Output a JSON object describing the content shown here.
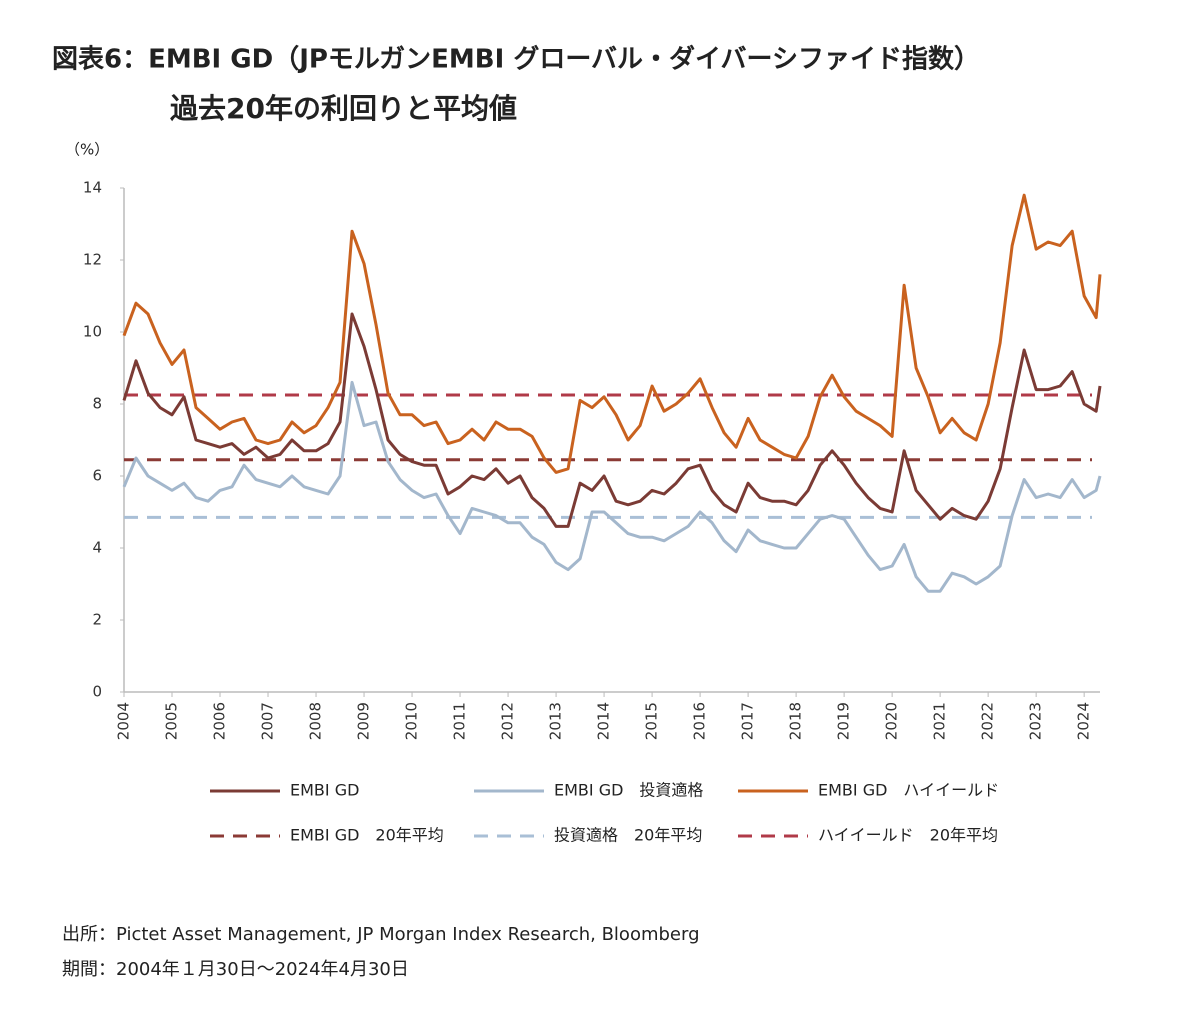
{
  "chart_data": {
    "type": "line",
    "title": "図表6：EMBI GD（JPモルガンEMBI グローバル・ダイバーシファイド指数）",
    "subtitle": "過去20年の利回りと平均値",
    "y_unit": "（%）",
    "x": [
      2004,
      2004.25,
      2004.5,
      2004.75,
      2005,
      2005.25,
      2005.5,
      2005.75,
      2006,
      2006.25,
      2006.5,
      2006.75,
      2007,
      2007.25,
      2007.5,
      2007.75,
      2008,
      2008.25,
      2008.5,
      2008.75,
      2009,
      2009.25,
      2009.5,
      2009.75,
      2010,
      2010.25,
      2010.5,
      2010.75,
      2011,
      2011.25,
      2011.5,
      2011.75,
      2012,
      2012.25,
      2012.5,
      2012.75,
      2013,
      2013.25,
      2013.5,
      2013.75,
      2014,
      2014.25,
      2014.5,
      2014.75,
      2015,
      2015.25,
      2015.5,
      2015.75,
      2016,
      2016.25,
      2016.5,
      2016.75,
      2017,
      2017.25,
      2017.5,
      2017.75,
      2018,
      2018.25,
      2018.5,
      2018.75,
      2019,
      2019.25,
      2019.5,
      2019.75,
      2020,
      2020.25,
      2020.5,
      2020.75,
      2021,
      2021.25,
      2021.5,
      2021.75,
      2022,
      2022.25,
      2022.5,
      2022.75,
      2023,
      2023.25,
      2023.5,
      2023.75,
      2024,
      2024.25,
      2024.33
    ],
    "series": [
      {
        "name": "EMBI GD",
        "color": "#7b3b35",
        "values": [
          8.1,
          9.2,
          8.3,
          7.9,
          7.7,
          8.2,
          7.0,
          6.9,
          6.8,
          6.9,
          6.6,
          6.8,
          6.5,
          6.6,
          7.0,
          6.7,
          6.7,
          6.9,
          7.5,
          10.5,
          9.6,
          8.4,
          7.0,
          6.6,
          6.4,
          6.3,
          6.3,
          5.5,
          5.7,
          6.0,
          5.9,
          6.2,
          5.8,
          6.0,
          5.4,
          5.1,
          4.6,
          4.6,
          5.8,
          5.6,
          6.0,
          5.3,
          5.2,
          5.3,
          5.6,
          5.5,
          5.8,
          6.2,
          6.3,
          5.6,
          5.2,
          5.0,
          5.8,
          5.4,
          5.3,
          5.3,
          5.2,
          5.6,
          6.3,
          6.7,
          6.3,
          5.8,
          5.4,
          5.1,
          5.0,
          6.7,
          5.6,
          5.2,
          4.8,
          5.1,
          4.9,
          4.8,
          5.3,
          6.2,
          7.9,
          9.5,
          8.4,
          8.4,
          8.5,
          8.9,
          8.0,
          7.8,
          8.5
        ]
      },
      {
        "name": "EMBI GD　投資適格",
        "color": "#a3b7cc",
        "values": [
          5.7,
          6.5,
          6.0,
          5.8,
          5.6,
          5.8,
          5.4,
          5.3,
          5.6,
          5.7,
          6.3,
          5.9,
          5.8,
          5.7,
          6.0,
          5.7,
          5.6,
          5.5,
          6.0,
          8.6,
          7.4,
          7.5,
          6.4,
          5.9,
          5.6,
          5.4,
          5.5,
          4.9,
          4.4,
          5.1,
          5.0,
          4.9,
          4.7,
          4.7,
          4.3,
          4.1,
          3.6,
          3.4,
          3.7,
          5.0,
          5.0,
          4.7,
          4.4,
          4.3,
          4.3,
          4.2,
          4.4,
          4.6,
          5.0,
          4.7,
          4.2,
          3.9,
          4.5,
          4.2,
          4.1,
          4.0,
          4.0,
          4.4,
          4.8,
          4.9,
          4.8,
          4.3,
          3.8,
          3.4,
          3.5,
          4.1,
          3.2,
          2.8,
          2.8,
          3.3,
          3.2,
          3.0,
          3.2,
          3.5,
          4.9,
          5.9,
          5.4,
          5.5,
          5.4,
          5.9,
          5.4,
          5.6,
          6.0
        ]
      },
      {
        "name": "EMBI GD　ハイイールド",
        "color": "#c9621f",
        "values": [
          9.9,
          10.8,
          10.5,
          9.7,
          9.1,
          9.5,
          7.9,
          7.6,
          7.3,
          7.5,
          7.6,
          7.0,
          6.9,
          7.0,
          7.5,
          7.2,
          7.4,
          7.9,
          8.6,
          12.8,
          11.9,
          10.2,
          8.3,
          7.7,
          7.7,
          7.4,
          7.5,
          6.9,
          7.0,
          7.3,
          7.0,
          7.5,
          7.3,
          7.3,
          7.1,
          6.5,
          6.1,
          6.2,
          8.1,
          7.9,
          8.2,
          7.7,
          7.0,
          7.4,
          8.5,
          7.8,
          8.0,
          8.3,
          8.7,
          7.9,
          7.2,
          6.8,
          7.6,
          7.0,
          6.8,
          6.6,
          6.5,
          7.1,
          8.2,
          8.8,
          8.2,
          7.8,
          7.6,
          7.4,
          7.1,
          11.3,
          9.0,
          8.2,
          7.2,
          7.6,
          7.2,
          7.0,
          8.0,
          9.7,
          12.4,
          13.8,
          12.3,
          12.5,
          12.4,
          12.8,
          11.0,
          10.4,
          11.6
        ]
      }
    ],
    "reference_lines": [
      {
        "name": "EMBI GD　20年平均",
        "color": "#8b3a35",
        "value": 6.45
      },
      {
        "name": "投資適格　20年平均",
        "color": "#a9bfd6",
        "value": 4.85
      },
      {
        "name": "ハイイールド　20年平均",
        "color": "#b03a48",
        "value": 8.25
      }
    ],
    "xlim": [
      2004,
      2024.33
    ],
    "xticks": [
      2004,
      2005,
      2006,
      2007,
      2008,
      2009,
      2010,
      2011,
      2012,
      2013,
      2014,
      2015,
      2016,
      2017,
      2018,
      2019,
      2020,
      2021,
      2022,
      2023,
      2024
    ],
    "ylim": [
      0,
      14
    ],
    "yticks": [
      0,
      2,
      4,
      6,
      8,
      10,
      12,
      14
    ],
    "grid": false
  },
  "notes": [
    "出所：Pictet Asset Management, JP Morgan Index Research, Bloomberg",
    "期間：2004年１月30日～2024年4月30日"
  ]
}
